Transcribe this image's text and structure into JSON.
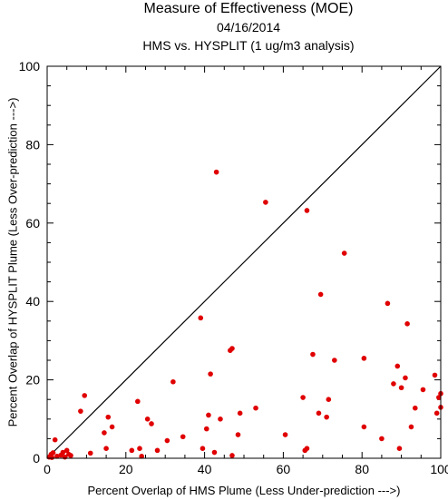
{
  "header": {
    "title": "Measure of Effectiveness (MOE)",
    "date": "04/16/2014",
    "subtitle": "HMS vs. HYSPLIT  (1 ug/m3 analysis)"
  },
  "chart_data": {
    "type": "scatter",
    "title": "Measure of Effectiveness (MOE)",
    "subtitle": "04/16/2014 — HMS vs. HYSPLIT  (1 ug/m3 analysis)",
    "xlabel": "Percent Overlap of HMS Plume (Less Under-prediction --->)",
    "ylabel": "Percent Overlap of HYSPLIT Plume (Less Over-prediction --->)",
    "xlim": [
      0,
      100
    ],
    "ylim": [
      0,
      100
    ],
    "xticks": [
      0,
      20,
      40,
      60,
      80,
      100
    ],
    "yticks": [
      0,
      20,
      40,
      60,
      80,
      100
    ],
    "reference_line": "1:1 diagonal",
    "point_color": "#e00000",
    "line_color": "#000000",
    "grid": false,
    "points": [
      [
        0.5,
        0.3
      ],
      [
        1.0,
        1.0
      ],
      [
        1.2,
        0.2
      ],
      [
        1.5,
        1.4
      ],
      [
        2.0,
        4.7
      ],
      [
        2.5,
        0.5
      ],
      [
        3.5,
        0.8
      ],
      [
        4.0,
        1.5
      ],
      [
        4.5,
        0.3
      ],
      [
        5.0,
        2.0
      ],
      [
        5.5,
        1.0
      ],
      [
        6.0,
        0.7
      ],
      [
        8.5,
        12.0
      ],
      [
        9.5,
        16.0
      ],
      [
        11.0,
        1.3
      ],
      [
        14.5,
        6.5
      ],
      [
        15.0,
        2.5
      ],
      [
        15.5,
        10.5
      ],
      [
        16.5,
        8.0
      ],
      [
        21.5,
        2.0
      ],
      [
        23.0,
        14.5
      ],
      [
        23.5,
        2.5
      ],
      [
        24.0,
        0.5
      ],
      [
        25.5,
        10.0
      ],
      [
        26.5,
        8.8
      ],
      [
        28.0,
        2.0
      ],
      [
        30.5,
        4.5
      ],
      [
        32.0,
        19.5
      ],
      [
        34.5,
        5.5
      ],
      [
        39.0,
        35.8
      ],
      [
        39.5,
        2.5
      ],
      [
        40.5,
        7.5
      ],
      [
        41.0,
        11.0
      ],
      [
        41.5,
        21.5
      ],
      [
        42.5,
        1.5
      ],
      [
        43.0,
        73.0
      ],
      [
        44.0,
        10.0
      ],
      [
        46.5,
        27.5
      ],
      [
        47.0,
        28.0
      ],
      [
        47.0,
        0.7
      ],
      [
        48.5,
        6.0
      ],
      [
        49.0,
        11.5
      ],
      [
        53.0,
        12.8
      ],
      [
        55.5,
        65.3
      ],
      [
        60.5,
        6.0
      ],
      [
        65.0,
        15.5
      ],
      [
        65.5,
        2.0
      ],
      [
        66.0,
        63.2
      ],
      [
        66.0,
        2.5
      ],
      [
        67.5,
        26.5
      ],
      [
        69.0,
        11.5
      ],
      [
        69.5,
        41.8
      ],
      [
        71.0,
        10.5
      ],
      [
        71.5,
        15.0
      ],
      [
        73.0,
        25.0
      ],
      [
        75.5,
        52.3
      ],
      [
        80.5,
        8.0
      ],
      [
        80.5,
        25.5
      ],
      [
        85.0,
        5.0
      ],
      [
        86.5,
        39.5
      ],
      [
        88.0,
        19.0
      ],
      [
        89.0,
        23.5
      ],
      [
        89.5,
        2.5
      ],
      [
        90.0,
        18.0
      ],
      [
        91.0,
        20.5
      ],
      [
        91.5,
        34.3
      ],
      [
        92.5,
        8.0
      ],
      [
        93.5,
        12.8
      ],
      [
        95.5,
        17.5
      ],
      [
        98.5,
        21.2
      ],
      [
        99.0,
        11.5
      ],
      [
        99.5,
        15.5
      ],
      [
        100.0,
        13.0
      ],
      [
        100.0,
        16.5
      ]
    ]
  }
}
